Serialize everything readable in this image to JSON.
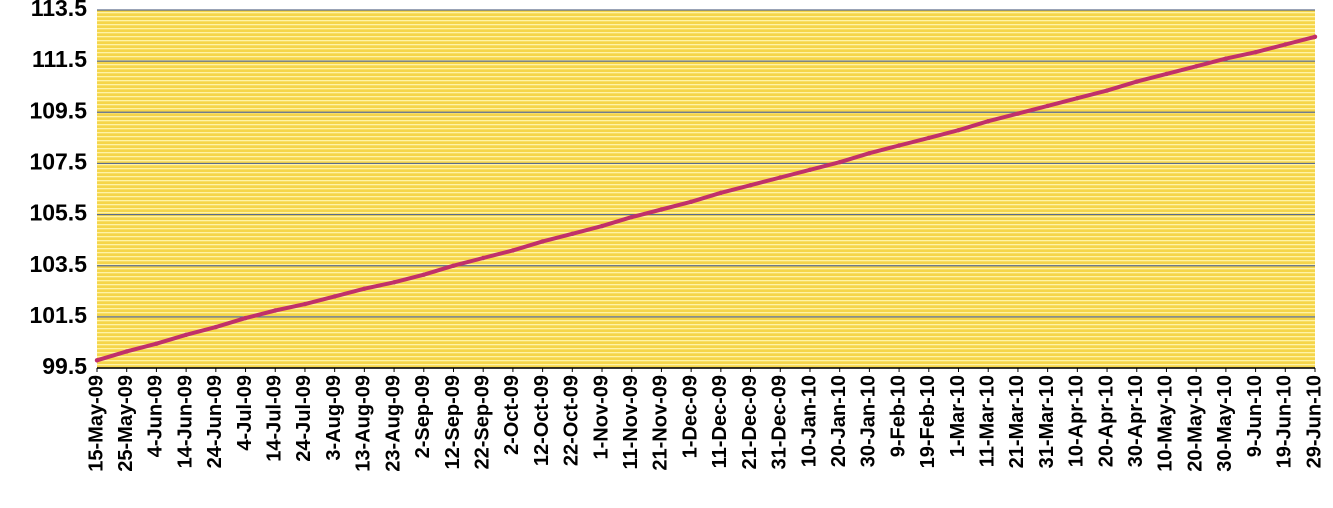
{
  "chart_data": {
    "type": "line",
    "title": "",
    "xlabel": "",
    "ylabel": "",
    "ylim": [
      99.5,
      113.5
    ],
    "y_ticks": [
      "99.5",
      "101.5",
      "103.5",
      "105.5",
      "107.5",
      "109.5",
      "111.5",
      "113.5"
    ],
    "x_tick_labels": [
      "15-May-09",
      "25-May-09",
      "4-Jun-09",
      "14-Jun-09",
      "24-Jun-09",
      "4-Jul-09",
      "14-Jul-09",
      "24-Jul-09",
      "3-Aug-09",
      "13-Aug-09",
      "23-Aug-09",
      "2-Sep-09",
      "12-Sep-09",
      "22-Sep-09",
      "2-Oct-09",
      "12-Oct-09",
      "22-Oct-09",
      "1-Nov-09",
      "11-Nov-09",
      "21-Nov-09",
      "1-Dec-09",
      "11-Dec-09",
      "21-Dec-09",
      "31-Dec-09",
      "10-Jan-10",
      "20-Jan-10",
      "30-Jan-10",
      "9-Feb-10",
      "19-Feb-10",
      "1-Mar-10",
      "11-Mar-10",
      "21-Mar-10",
      "31-Mar-10",
      "10-Apr-10",
      "20-Apr-10",
      "30-Apr-10",
      "10-May-10",
      "20-May-10",
      "30-May-10",
      "9-Jun-10",
      "19-Jun-10",
      "29-Jun-10"
    ],
    "grid": true,
    "legend": "none",
    "series": [
      {
        "color": "#c0306a",
        "x": [
          "15-May-09",
          "25-May-09",
          "4-Jun-09",
          "14-Jun-09",
          "24-Jun-09",
          "4-Jul-09",
          "14-Jul-09",
          "24-Jul-09",
          "3-Aug-09",
          "13-Aug-09",
          "23-Aug-09",
          "2-Sep-09",
          "12-Sep-09",
          "22-Sep-09",
          "2-Oct-09",
          "12-Oct-09",
          "22-Oct-09",
          "1-Nov-09",
          "11-Nov-09",
          "21-Nov-09",
          "1-Dec-09",
          "11-Dec-09",
          "21-Dec-09",
          "31-Dec-09",
          "10-Jan-10",
          "20-Jan-10",
          "30-Jan-10",
          "9-Feb-10",
          "19-Feb-10",
          "1-Mar-10",
          "11-Mar-10",
          "21-Mar-10",
          "31-Mar-10",
          "10-Apr-10",
          "20-Apr-10",
          "30-Apr-10",
          "10-May-10",
          "20-May-10",
          "30-May-10",
          "9-Jun-10",
          "19-Jun-10",
          "29-Jun-10"
        ],
        "values": [
          99.8,
          100.15,
          100.45,
          100.8,
          101.1,
          101.45,
          101.75,
          102.0,
          102.3,
          102.6,
          102.85,
          103.15,
          103.5,
          103.8,
          104.1,
          104.45,
          104.75,
          105.05,
          105.4,
          105.7,
          106.0,
          106.35,
          106.65,
          106.95,
          107.25,
          107.55,
          107.9,
          108.2,
          108.5,
          108.8,
          109.15,
          109.45,
          109.75,
          110.05,
          110.35,
          110.7,
          111.0,
          111.3,
          111.6,
          111.85,
          112.15,
          112.45
        ]
      }
    ]
  },
  "colors": {
    "plot_background": "#f5d54a",
    "stripe": "#fff3a6",
    "gridline": "#5c6c8c",
    "line": "#c0306a"
  }
}
